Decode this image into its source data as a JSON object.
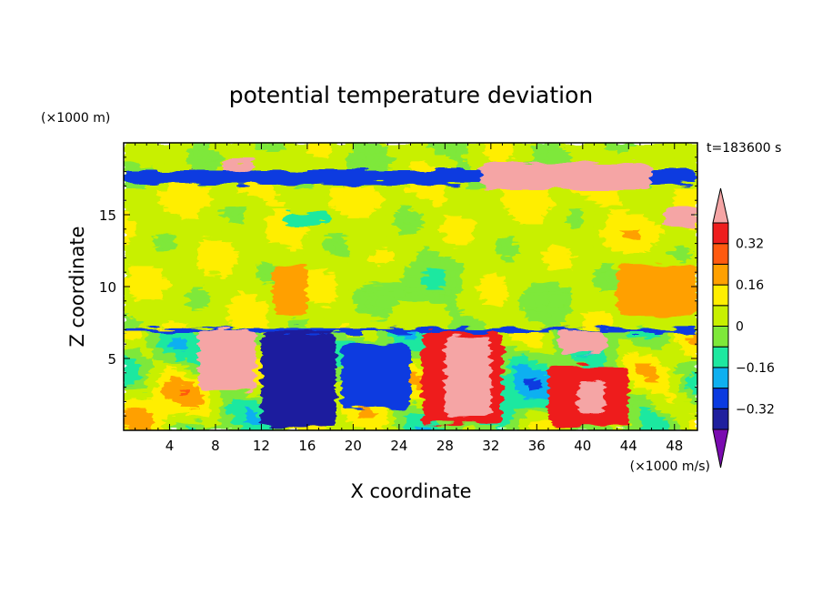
{
  "chart_data": {
    "type": "heatmap",
    "title": "potential temperature deviation",
    "xlabel": "X coordinate",
    "ylabel": "Z coordinate",
    "x_unit": "(×1000 m/s)",
    "y_unit": "(×1000 m)",
    "time_label": "t=183600 s",
    "xlim": [
      0,
      50
    ],
    "ylim": [
      0,
      20
    ],
    "x_ticks": [
      4,
      8,
      12,
      16,
      20,
      24,
      28,
      32,
      36,
      40,
      44,
      48
    ],
    "y_ticks": [
      5,
      10,
      15
    ],
    "colorbar": {
      "tick_labels": [
        "0.32",
        "0.16",
        "0",
        "−0.16",
        "−0.32"
      ],
      "tick_values": [
        0.32,
        0.16,
        0,
        -0.16,
        -0.32
      ],
      "levels": [
        -0.4,
        -0.32,
        -0.24,
        -0.16,
        -0.08,
        0,
        0.08,
        0.16,
        0.24,
        0.32,
        0.4
      ],
      "colors": [
        "#7a0bb0",
        "#1f1f9e",
        "#0a3ae0",
        "#0fb0f0",
        "#1ee8a0",
        "#7ee83a",
        "#c8f000",
        "#ffee00",
        "#ffa000",
        "#ff5a10",
        "#ee1e1e",
        "#f5a5a5"
      ],
      "extend": "both"
    },
    "field_features": [
      {
        "x": [
          0,
          50
        ],
        "z": [
          17.1,
          18.1
        ],
        "value": -0.32
      },
      {
        "x": [
          8.5,
          11.5
        ],
        "z": [
          18.0,
          18.8
        ],
        "value": 0.42
      },
      {
        "x": [
          31,
          46
        ],
        "z": [
          16.8,
          18.6
        ],
        "value": 0.42
      },
      {
        "x": [
          47,
          50
        ],
        "z": [
          14.2,
          15.6
        ],
        "value": 0.42
      },
      {
        "x": [
          14,
          18
        ],
        "z": [
          14.3,
          15.2
        ],
        "value": -0.16
      },
      {
        "x": [
          13,
          16
        ],
        "z": [
          8,
          11.5
        ],
        "value": 0.16
      },
      {
        "x": [
          43,
          50
        ],
        "z": [
          8,
          11.5
        ],
        "value": 0.16
      },
      {
        "x": [
          0,
          50
        ],
        "z": [
          6.8,
          7.1
        ],
        "value": -0.32
      },
      {
        "x": [
          6.5,
          11.5
        ],
        "z": [
          2.8,
          7.0
        ],
        "value": 0.42
      },
      {
        "x": [
          12,
          18.5
        ],
        "z": [
          0.2,
          6.8
        ],
        "value": -0.4
      },
      {
        "x": [
          19,
          25
        ],
        "z": [
          1.5,
          6.0
        ],
        "value": -0.32
      },
      {
        "x": [
          26,
          33
        ],
        "z": [
          0.5,
          6.8
        ],
        "value": 0.32
      },
      {
        "x": [
          28,
          32
        ],
        "z": [
          1,
          6.5
        ],
        "value": 0.42
      },
      {
        "x": [
          37,
          44
        ],
        "z": [
          0.3,
          4.5
        ],
        "value": 0.32
      },
      {
        "x": [
          39.5,
          42
        ],
        "z": [
          1.3,
          3.3
        ],
        "value": 0.42
      },
      {
        "x": [
          38,
          42
        ],
        "z": [
          5.3,
          7.0
        ],
        "value": 0.42
      }
    ]
  }
}
